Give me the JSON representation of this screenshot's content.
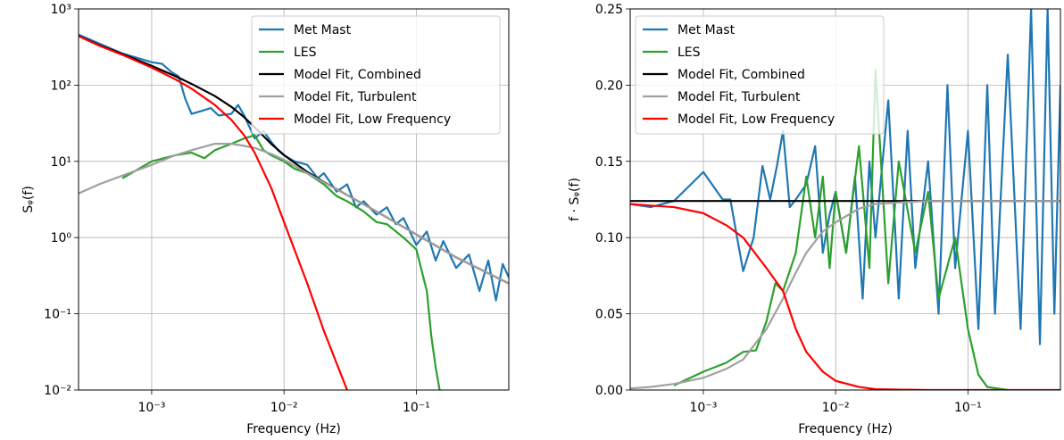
{
  "chart_data": [
    {
      "type": "line",
      "xlabel": "Frequency (Hz)",
      "ylabel": "Sᵩ(f)",
      "log_x": true,
      "log_y": true,
      "grid": true,
      "legend": "upper right",
      "xlim": [
        0.00028,
        0.5
      ],
      "ylim": [
        0.01,
        1000
      ],
      "xticks": [
        {
          "value": 0.001,
          "label": "10⁻³"
        },
        {
          "value": 0.01,
          "label": "10⁻²"
        },
        {
          "value": 0.1,
          "label": "10⁻¹"
        }
      ],
      "yticks": [
        {
          "value": 0.01,
          "label": "10⁻²"
        },
        {
          "value": 0.1,
          "label": "10⁻¹"
        },
        {
          "value": 1,
          "label": "10⁰"
        },
        {
          "value": 10,
          "label": "10¹"
        },
        {
          "value": 100,
          "label": "10²"
        },
        {
          "value": 1000,
          "label": "10³"
        }
      ],
      "series": [
        {
          "name": "Met Mast",
          "color": "#1f77b4",
          "x": [
            0.00028,
            0.0006,
            0.001,
            0.0012,
            0.0014,
            0.0016,
            0.0018,
            0.002,
            0.0024,
            0.0028,
            0.0032,
            0.004,
            0.0045,
            0.005,
            0.006,
            0.007,
            0.008,
            0.009,
            0.01,
            0.012,
            0.015,
            0.018,
            0.02,
            0.025,
            0.03,
            0.035,
            0.04,
            0.05,
            0.06,
            0.07,
            0.08,
            0.1,
            0.12,
            0.14,
            0.16,
            0.2,
            0.25,
            0.3,
            0.35,
            0.4,
            0.45,
            0.5
          ],
          "values": [
            460,
            260,
            200,
            190,
            150,
            130,
            65,
            42,
            46,
            50,
            40,
            42,
            55,
            40,
            20,
            25,
            18,
            14,
            12,
            10,
            9,
            6,
            7,
            4,
            5,
            2.5,
            3,
            2,
            2.5,
            1.5,
            1.8,
            0.8,
            1.2,
            0.5,
            0.9,
            0.4,
            0.6,
            0.2,
            0.5,
            0.15,
            0.45,
            0.3
          ]
        },
        {
          "name": "LES",
          "color": "#2ca02c",
          "x": [
            0.0006,
            0.001,
            0.0015,
            0.002,
            0.0025,
            0.003,
            0.004,
            0.005,
            0.006,
            0.007,
            0.008,
            0.01,
            0.012,
            0.015,
            0.02,
            0.025,
            0.03,
            0.04,
            0.05,
            0.06,
            0.08,
            0.1,
            0.12,
            0.13,
            0.14,
            0.15
          ],
          "values": [
            6,
            10,
            12,
            13,
            11,
            14,
            17,
            20,
            22,
            14,
            12,
            10,
            8,
            7,
            5,
            3.5,
            3,
            2.2,
            1.6,
            1.5,
            1,
            0.7,
            0.2,
            0.05,
            0.02,
            0.01
          ]
        },
        {
          "name": "Model Fit, Combined",
          "color": "#000000",
          "x": [
            0.00028,
            0.0004,
            0.0006,
            0.001,
            0.0015,
            0.002,
            0.003,
            0.004,
            0.005,
            0.006,
            0.008,
            0.01,
            0.015,
            0.02,
            0.03,
            0.05,
            0.1,
            0.2,
            0.5
          ],
          "values": [
            444,
            335,
            257,
            179,
            132,
            104,
            72,
            52,
            38,
            28,
            17,
            12.1,
            7.25,
            5.36,
            3.61,
            2.2,
            1.1,
            0.55,
            0.25
          ]
        },
        {
          "name": "Model Fit, Turbulent",
          "color": "#a0a0a0",
          "x": [
            0.00028,
            0.0004,
            0.0006,
            0.001,
            0.0015,
            0.002,
            0.003,
            0.004,
            0.005,
            0.006,
            0.008,
            0.01,
            0.015,
            0.02,
            0.03,
            0.05,
            0.1,
            0.2,
            0.5
          ],
          "values": [
            3.8,
            5,
            6.5,
            9,
            12,
            14,
            17,
            17,
            16,
            15,
            12.5,
            10.5,
            7,
            5.3,
            3.6,
            2.2,
            1.1,
            0.55,
            0.25
          ]
        },
        {
          "name": "Model Fit, Low Frequency",
          "color": "#ff0000",
          "x": [
            0.00028,
            0.0004,
            0.0006,
            0.001,
            0.0015,
            0.002,
            0.003,
            0.004,
            0.005,
            0.006,
            0.008,
            0.01,
            0.015,
            0.02,
            0.03
          ],
          "values": [
            440,
            330,
            250,
            170,
            120,
            90,
            55,
            35,
            22,
            13,
            4.5,
            1.6,
            0.25,
            0.06,
            0.01
          ]
        }
      ]
    },
    {
      "type": "line",
      "xlabel": "Frequency (Hz)",
      "ylabel": "f · Sᵩ(f)",
      "log_x": true,
      "log_y": false,
      "grid": true,
      "legend": "upper left",
      "xlim": [
        0.00028,
        0.5
      ],
      "ylim": [
        0,
        0.25
      ],
      "xticks": [
        {
          "value": 0.001,
          "label": "10⁻³"
        },
        {
          "value": 0.01,
          "label": "10⁻²"
        },
        {
          "value": 0.1,
          "label": "10⁻¹"
        }
      ],
      "yticks": [
        {
          "value": 0,
          "label": "0.00"
        },
        0.05,
        {
          "value": 0.1,
          "label": "0.10"
        },
        0.15,
        {
          "value": 0.2,
          "label": "0.20"
        },
        0.25
      ],
      "series": [
        {
          "name": "Met Mast",
          "color": "#1f77b4",
          "x": [
            0.00028,
            0.0004,
            0.0006,
            0.001,
            0.0014,
            0.0016,
            0.0018,
            0.002,
            0.0024,
            0.0028,
            0.0032,
            0.0036,
            0.004,
            0.0045,
            0.005,
            0.006,
            0.007,
            0.008,
            0.009,
            0.01,
            0.012,
            0.014,
            0.016,
            0.018,
            0.02,
            0.025,
            0.03,
            0.035,
            0.04,
            0.05,
            0.06,
            0.07,
            0.08,
            0.1,
            0.12,
            0.14,
            0.16,
            0.2,
            0.25,
            0.3,
            0.35,
            0.4,
            0.45,
            0.5
          ],
          "values": [
            0.122,
            0.12,
            0.124,
            0.143,
            0.125,
            0.125,
            0.1,
            0.078,
            0.1,
            0.147,
            0.125,
            0.147,
            0.17,
            0.12,
            0.125,
            0.135,
            0.16,
            0.09,
            0.115,
            0.13,
            0.09,
            0.14,
            0.06,
            0.15,
            0.1,
            0.19,
            0.06,
            0.17,
            0.08,
            0.15,
            0.05,
            0.2,
            0.08,
            0.17,
            0.04,
            0.2,
            0.05,
            0.22,
            0.04,
            0.25,
            0.03,
            0.25,
            0.05,
            0.2
          ]
        },
        {
          "name": "LES",
          "color": "#2ca02c",
          "x": [
            0.0006,
            0.001,
            0.0015,
            0.002,
            0.0025,
            0.003,
            0.0035,
            0.004,
            0.005,
            0.006,
            0.007,
            0.008,
            0.009,
            0.01,
            0.012,
            0.015,
            0.018,
            0.02,
            0.025,
            0.03,
            0.04,
            0.05,
            0.06,
            0.08,
            0.1,
            0.12,
            0.14,
            0.2
          ],
          "values": [
            0.003,
            0.012,
            0.018,
            0.025,
            0.026,
            0.045,
            0.07,
            0.065,
            0.09,
            0.14,
            0.1,
            0.14,
            0.08,
            0.13,
            0.09,
            0.16,
            0.08,
            0.21,
            0.07,
            0.15,
            0.09,
            0.13,
            0.06,
            0.1,
            0.04,
            0.01,
            0.002,
            0
          ]
        },
        {
          "name": "Model Fit, Combined",
          "color": "#000000",
          "x": [
            0.00028,
            0.5
          ],
          "values": [
            0.124,
            0.124
          ]
        },
        {
          "name": "Model Fit, Turbulent",
          "color": "#a0a0a0",
          "x": [
            0.00028,
            0.0004,
            0.0006,
            0.001,
            0.0015,
            0.002,
            0.003,
            0.004,
            0.005,
            0.006,
            0.008,
            0.01,
            0.015,
            0.02,
            0.03,
            0.05,
            0.1,
            0.5
          ],
          "values": [
            0.001,
            0.002,
            0.004,
            0.008,
            0.014,
            0.02,
            0.04,
            0.06,
            0.077,
            0.09,
            0.104,
            0.11,
            0.119,
            0.122,
            0.123,
            0.124,
            0.124,
            0.124
          ]
        },
        {
          "name": "Model Fit, Low Frequency",
          "color": "#ff0000",
          "x": [
            0.00028,
            0.0004,
            0.0006,
            0.001,
            0.0015,
            0.002,
            0.003,
            0.004,
            0.005,
            0.006,
            0.008,
            0.01,
            0.015,
            0.02,
            0.05,
            0.5
          ],
          "values": [
            0.122,
            0.121,
            0.12,
            0.116,
            0.108,
            0.1,
            0.08,
            0.065,
            0.04,
            0.025,
            0.012,
            0.006,
            0.002,
            0.0005,
            0,
            0
          ]
        }
      ]
    }
  ]
}
